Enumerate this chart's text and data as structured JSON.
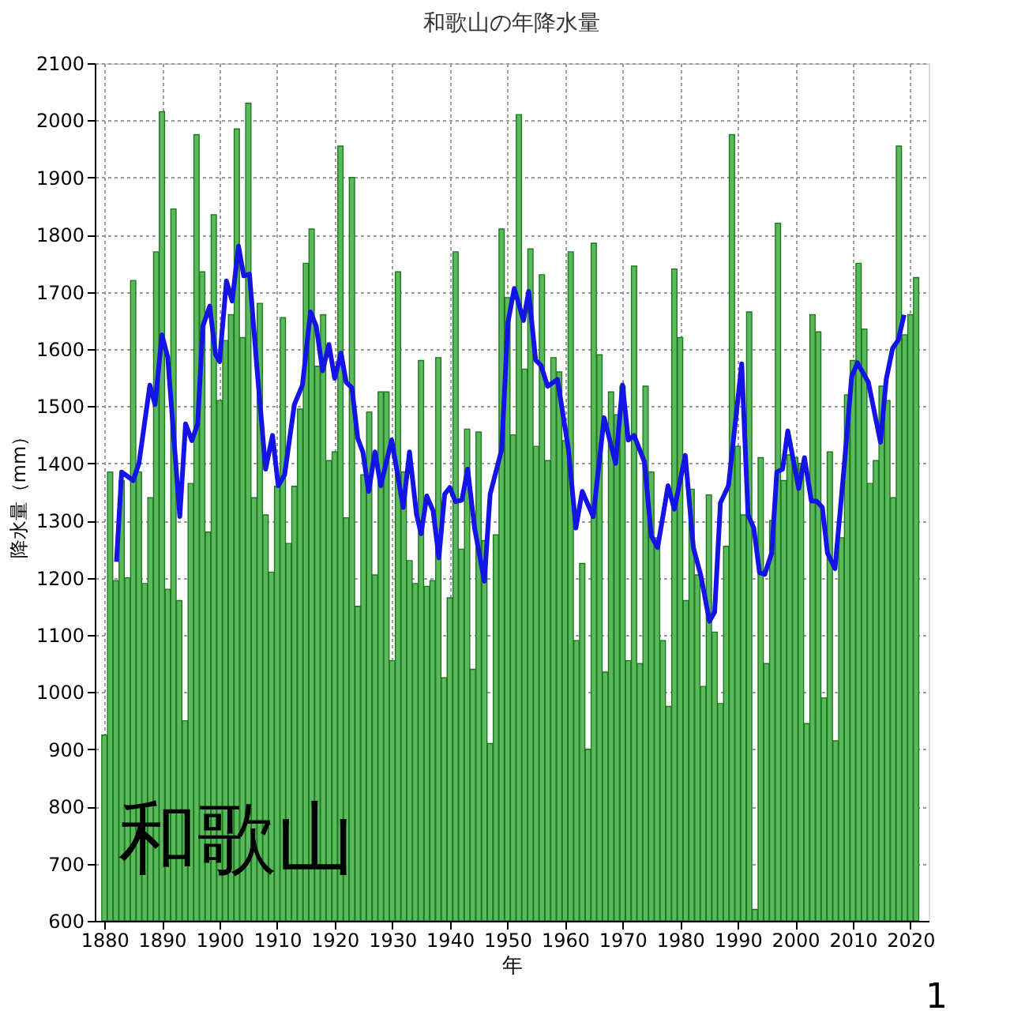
{
  "chart_data": {
    "type": "bar",
    "title": "和歌山の年降水量",
    "xlabel": "年",
    "ylabel": "降水量（mm）",
    "x": [
      1880,
      1881,
      1882,
      1883,
      1884,
      1885,
      1886,
      1887,
      1888,
      1889,
      1890,
      1891,
      1892,
      1893,
      1894,
      1895,
      1896,
      1897,
      1898,
      1899,
      1900,
      1901,
      1902,
      1903,
      1904,
      1905,
      1906,
      1907,
      1908,
      1909,
      1910,
      1911,
      1912,
      1913,
      1914,
      1915,
      1916,
      1917,
      1918,
      1919,
      1920,
      1921,
      1922,
      1923,
      1924,
      1925,
      1926,
      1927,
      1928,
      1929,
      1930,
      1931,
      1932,
      1933,
      1934,
      1935,
      1936,
      1937,
      1938,
      1939,
      1940,
      1941,
      1942,
      1943,
      1944,
      1945,
      1946,
      1947,
      1948,
      1949,
      1950,
      1951,
      1952,
      1953,
      1954,
      1955,
      1956,
      1957,
      1958,
      1959,
      1960,
      1961,
      1962,
      1963,
      1964,
      1965,
      1966,
      1967,
      1968,
      1969,
      1970,
      1971,
      1972,
      1973,
      1974,
      1975,
      1976,
      1977,
      1978,
      1979,
      1980,
      1981,
      1982,
      1983,
      1984,
      1985,
      1986,
      1987,
      1988,
      1989,
      1990,
      1991,
      1992,
      1993,
      1994,
      1995,
      1996,
      1997,
      1998,
      1999,
      2000,
      2001,
      2002,
      2003,
      2004,
      2005,
      2006,
      2007,
      2008,
      2009,
      2010,
      2011,
      2012,
      2013,
      2014,
      2015,
      2016,
      2017,
      2018,
      2019,
      2020,
      2021
    ],
    "series": [
      {
        "color": "#5cb85c",
        "values": [
          925,
          1385,
          1195,
          1370,
          1200,
          1720,
          1385,
          1190,
          1340,
          1770,
          2015,
          1180,
          1845,
          1160,
          950,
          1365,
          1975,
          1735,
          1280,
          1835,
          1510,
          1615,
          1660,
          1985,
          1620,
          2030,
          1340,
          1680,
          1310,
          1210,
          1360,
          1655,
          1260,
          1360,
          1495,
          1750,
          1810,
          1570,
          1660,
          1405,
          1420,
          1955,
          1305,
          1900,
          1150,
          1380,
          1490,
          1205,
          1525,
          1525,
          1055,
          1735,
          1385,
          1230,
          1190,
          1580,
          1185,
          1195,
          1585,
          1025,
          1165,
          1770,
          1250,
          1460,
          1040,
          1455,
          1265,
          910,
          1275,
          1810,
          1690,
          1450,
          2010,
          1565,
          1775,
          1430,
          1730,
          1405,
          1585,
          1560,
          1440,
          1770,
          1090,
          1225,
          900,
          1785,
          1590,
          1035,
          1525,
          1485,
          1535,
          1055,
          1745,
          1050,
          1535,
          1385,
          1270,
          1090,
          975,
          1740,
          1620,
          1160,
          1355,
          1205,
          1010,
          1345,
          1105,
          980,
          1255,
          1975,
          1430,
          1310,
          1665,
          620,
          1410,
          1050,
          1300,
          1820,
          1370,
          1415,
          1410,
          1400,
          945,
          1660,
          1630,
          990,
          1420,
          915,
          1270,
          1520,
          1580,
          1750,
          1635,
          1365,
          1405,
          1535,
          1510,
          1340,
          1955,
          1625,
          1660,
          1725
        ]
      },
      {
        "type": "line",
        "color": "#1414e6",
        "x": [
          1882.1,
          1883,
          1885,
          1886,
          1887.9,
          1888.8,
          1890,
          1891,
          1893.1,
          1894.1,
          1895.2,
          1896.2,
          1897.1,
          1898.3,
          1899.3,
          1900,
          1901.2,
          1902.2,
          1903.3,
          1904.2,
          1905.2,
          1906.5,
          1908,
          1909.2,
          1910.2,
          1911.3,
          1913,
          1914.4,
          1915.8,
          1916.8,
          1917.9,
          1919,
          1920,
          1921.1,
          1922,
          1923,
          1924,
          1924.9,
          1925.9,
          1927,
          1928,
          1929.9,
          1931.9,
          1933,
          1934.2,
          1935,
          1936,
          1937.1,
          1938.1,
          1939.1,
          1940,
          1941,
          1942.1,
          1943.1,
          1944.3,
          1946,
          1947,
          1949,
          1950.1,
          1951.2,
          1952.8,
          1953.7,
          1954.9,
          1955.8,
          1957,
          1958.7,
          1960.6,
          1961.9,
          1963,
          1964.9,
          1966.8,
          1968.8,
          1970,
          1971,
          1972,
          1973.8,
          1975,
          1976.1,
          1977.9,
          1979,
          1980.9,
          1982.3,
          1983.6,
          1985.1,
          1986,
          1987,
          1988.4,
          1990.7,
          1991.8,
          1992.8,
          1993.8,
          1994.7,
          1995.9,
          1996.8,
          1997.8,
          1998.7,
          2000.6,
          2001.6,
          2002.8,
          2003.7,
          2004.7,
          2005.6,
          2006.9,
          2008.5,
          2009.8,
          2010.8,
          2012.7,
          2014.8,
          2015.8,
          2016.9,
          2017.9,
          2018.9
        ],
        "values": [
          1228,
          1385,
          1370,
          1400,
          1537,
          1503,
          1625,
          1586,
          1307,
          1469,
          1440,
          1469,
          1640,
          1675,
          1591,
          1578,
          1719,
          1684,
          1780,
          1728,
          1731,
          1567,
          1390,
          1449,
          1361,
          1380,
          1503,
          1537,
          1665,
          1640,
          1562,
          1608,
          1549,
          1593,
          1542,
          1532,
          1444,
          1420,
          1351,
          1420,
          1361,
          1441,
          1323,
          1420,
          1312,
          1277,
          1343,
          1317,
          1235,
          1346,
          1358,
          1333,
          1336,
          1390,
          1287,
          1194,
          1346,
          1424,
          1647,
          1706,
          1650,
          1701,
          1581,
          1572,
          1535,
          1547,
          1425,
          1287,
          1351,
          1307,
          1480,
          1400,
          1537,
          1441,
          1449,
          1403,
          1273,
          1253,
          1361,
          1320,
          1414,
          1253,
          1204,
          1124,
          1140,
          1331,
          1361,
          1574,
          1310,
          1287,
          1209,
          1206,
          1243,
          1385,
          1390,
          1457,
          1356,
          1410,
          1334,
          1334,
          1323,
          1243,
          1216,
          1395,
          1552,
          1576,
          1542,
          1437,
          1547,
          1601,
          1616,
          1660
        ]
      }
    ],
    "xlim": [
      1879.7,
      2021.8
    ],
    "xticks": [
      1880,
      1890,
      1900,
      1910,
      1920,
      1930,
      1940,
      1950,
      1960,
      1970,
      1980,
      1990,
      2000,
      2010,
      2020
    ],
    "ylim": [
      600,
      2100
    ],
    "yticks": [
      600,
      700,
      800,
      900,
      1000,
      1100,
      1200,
      1300,
      1400,
      1500,
      1600,
      1700,
      1800,
      1900,
      2000,
      2100
    ],
    "grid": true,
    "legend": false,
    "annotations": [
      "和歌山",
      "1"
    ]
  }
}
